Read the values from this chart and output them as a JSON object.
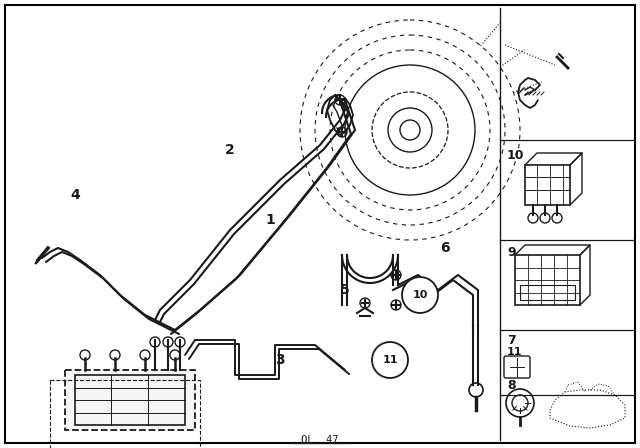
{
  "bg_color": "#ffffff",
  "border_color": "#000000",
  "line_color": "#1a1a1a",
  "bottom_label": "OL  47",
  "fig_width": 6.4,
  "fig_height": 4.48,
  "dpi": 100
}
